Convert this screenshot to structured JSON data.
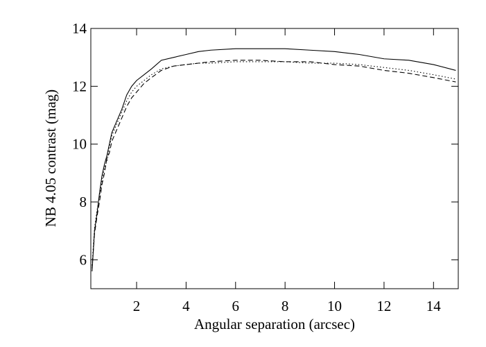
{
  "chart_data": {
    "type": "line",
    "xlabel": "Angular separation (arcsec)",
    "ylabel": "NB 4.05 contrast (mag)",
    "x": [
      0.2,
      0.3,
      0.4,
      0.5,
      0.6,
      0.7,
      0.8,
      0.9,
      1.0,
      1.2,
      1.4,
      1.6,
      1.8,
      2.0,
      2.3,
      2.6,
      3.0,
      3.5,
      4,
      4.5,
      5,
      6,
      7,
      8,
      9,
      10,
      11,
      12,
      13,
      14,
      14.9
    ],
    "series": [
      {
        "color": "#000000",
        "dash": "solid",
        "values": [
          5.6,
          7.0,
          7.6,
          8.3,
          8.9,
          9.3,
          9.6,
          10.0,
          10.4,
          10.8,
          11.2,
          11.7,
          12.0,
          12.2,
          12.4,
          12.6,
          12.9,
          13.0,
          13.1,
          13.2,
          13.25,
          13.3,
          13.3,
          13.3,
          13.25,
          13.2,
          13.1,
          12.95,
          12.9,
          12.75,
          12.55
        ]
      },
      {
        "color": "#000000",
        "dash": "dashed",
        "values": [
          5.7,
          6.9,
          7.5,
          8.0,
          8.6,
          9.0,
          9.5,
          9.7,
          10.1,
          10.5,
          10.9,
          11.3,
          11.6,
          11.8,
          12.1,
          12.3,
          12.55,
          12.7,
          12.75,
          12.8,
          12.85,
          12.9,
          12.9,
          12.85,
          12.85,
          12.75,
          12.7,
          12.55,
          12.45,
          12.3,
          12.15
        ]
      },
      {
        "color": "#000000",
        "dash": "dotted",
        "values": [
          5.8,
          7.1,
          7.7,
          8.2,
          8.7,
          9.2,
          9.4,
          9.9,
          10.3,
          10.7,
          11.1,
          11.5,
          11.8,
          12.0,
          12.2,
          12.4,
          12.6,
          12.7,
          12.75,
          12.8,
          12.8,
          12.85,
          12.85,
          12.85,
          12.8,
          12.8,
          12.75,
          12.65,
          12.55,
          12.4,
          12.25
        ]
      }
    ],
    "xlim": [
      0.15,
      15
    ],
    "ylim": [
      5,
      14
    ],
    "xticks": [
      2,
      4,
      6,
      8,
      10,
      12,
      14
    ],
    "yticks": [
      6,
      8,
      10,
      12,
      14
    ],
    "grid": false
  }
}
